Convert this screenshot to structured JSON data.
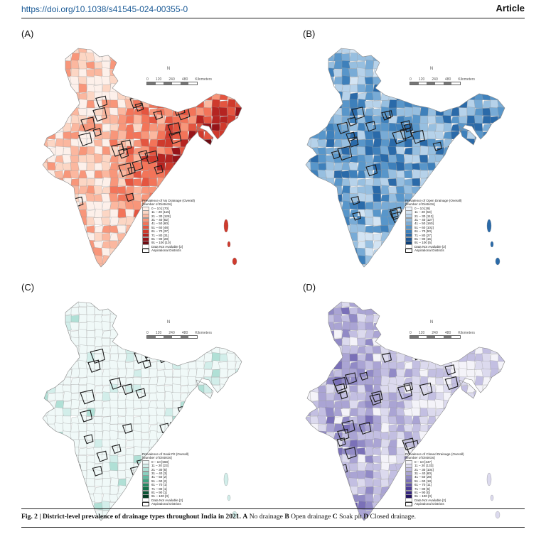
{
  "header": {
    "doi": "https://doi.org/10.1038/s41545-024-00355-0",
    "type": "Article"
  },
  "scale_bar": {
    "ticks": [
      "0",
      "120",
      "240",
      "480"
    ],
    "unit": "Kilometers"
  },
  "north_label": "N",
  "panels": [
    {
      "label": "(A)",
      "legend_title": "Prevalence of No Drainage (Overall)",
      "legend_subtitle": "[Number of Districts]",
      "colors": [
        "#fdf0ea",
        "#fcd6c4",
        "#fbb79f",
        "#f8967a",
        "#f37459",
        "#e45540",
        "#cf3a2d",
        "#b52421",
        "#961419",
        "#6e0a12"
      ],
      "classes": [
        "0 – 10 [170]",
        "11 – 20 [115]",
        "21 – 30 [128]",
        "31 – 40 [82]",
        "41 – 50 [60]",
        "51 – 60 [48]",
        "61 – 70 [37]",
        "71 – 80 [31]",
        "81 – 90 [28]",
        "91 – 100 [10]"
      ],
      "na": "Data Not Available [2]",
      "aspirational": "Aspirational Districts"
    },
    {
      "label": "(B)",
      "legend_title": "Prevalence of Open Drainage (Overall)",
      "legend_subtitle": "[Number of Districts]",
      "colors": [
        "#eef4fb",
        "#d3e4f3",
        "#b6d2ea",
        "#97bfe0",
        "#78abd6",
        "#5896ca",
        "#3e80bb",
        "#2a6aa9",
        "#1b5593",
        "#0d3f78"
      ],
      "classes": [
        "0 – 10 [29]",
        "11 – 20 [63]",
        "21 – 30 [112]",
        "31 – 40 [127]",
        "41 – 50 [160]",
        "51 – 60 [102]",
        "61 – 70 [50]",
        "71 – 80 [27]",
        "81 – 90 [15]",
        "91 – 100 [5]"
      ],
      "na": "Data Not Available [2]",
      "aspirational": "Aspirational Districts"
    },
    {
      "label": "(C)",
      "legend_title": "Prevalence of Soak Pit (Overall)",
      "legend_subtitle": "[Number of Districts]",
      "colors": [
        "#f0f9f8",
        "#d2eeea",
        "#b0e0d6",
        "#8ad0c0",
        "#62bba3",
        "#3fa482",
        "#268a63",
        "#14704a",
        "#075534",
        "#033b22"
      ],
      "classes": [
        "0 – 10 [668]",
        "11 – 20 [23]",
        "21 – 30 [5]",
        "31 – 40 [3]",
        "41 – 50 [2]",
        "51 – 60 [2]",
        "61 – 70 [1]",
        "71 – 80 [1]",
        "81 – 90 [1]",
        "91 – 100 [0]"
      ],
      "na": "Data Not Available [2]",
      "aspirational": "Aspirational Districts"
    },
    {
      "label": "(D)",
      "legend_title": "Prevalence of Closed Drainage (Overall)",
      "legend_subtitle": "[Number of Districts]",
      "colors": [
        "#f4f3f9",
        "#dcdaee",
        "#c3bfe2",
        "#aaa4d4",
        "#918ac6",
        "#7a70b8",
        "#6356a8",
        "#4d3d97",
        "#372681",
        "#231262"
      ],
      "classes": [
        "0 – 10 [347]",
        "11 – 20 [133]",
        "21 – 30 [104]",
        "31 – 40 [60]",
        "41 – 50 [28]",
        "51 – 60 [18]",
        "61 – 70 [11]",
        "71 – 80 [6]",
        "81 – 90 [0]",
        "91 – 100 [0]"
      ],
      "na": "Data Not Available [2]",
      "aspirational": "Aspirational Districts"
    }
  ],
  "caption": {
    "bold": "Fig. 2 | District-level prevalence of drainage types throughout India in 2021.",
    "a": "A",
    "a_text": " No drainage ",
    "b": "B",
    "b_text": " Open drainage ",
    "c": "C",
    "c_text": " Soak pit ",
    "d": "D",
    "d_text": " Closed drainage."
  }
}
